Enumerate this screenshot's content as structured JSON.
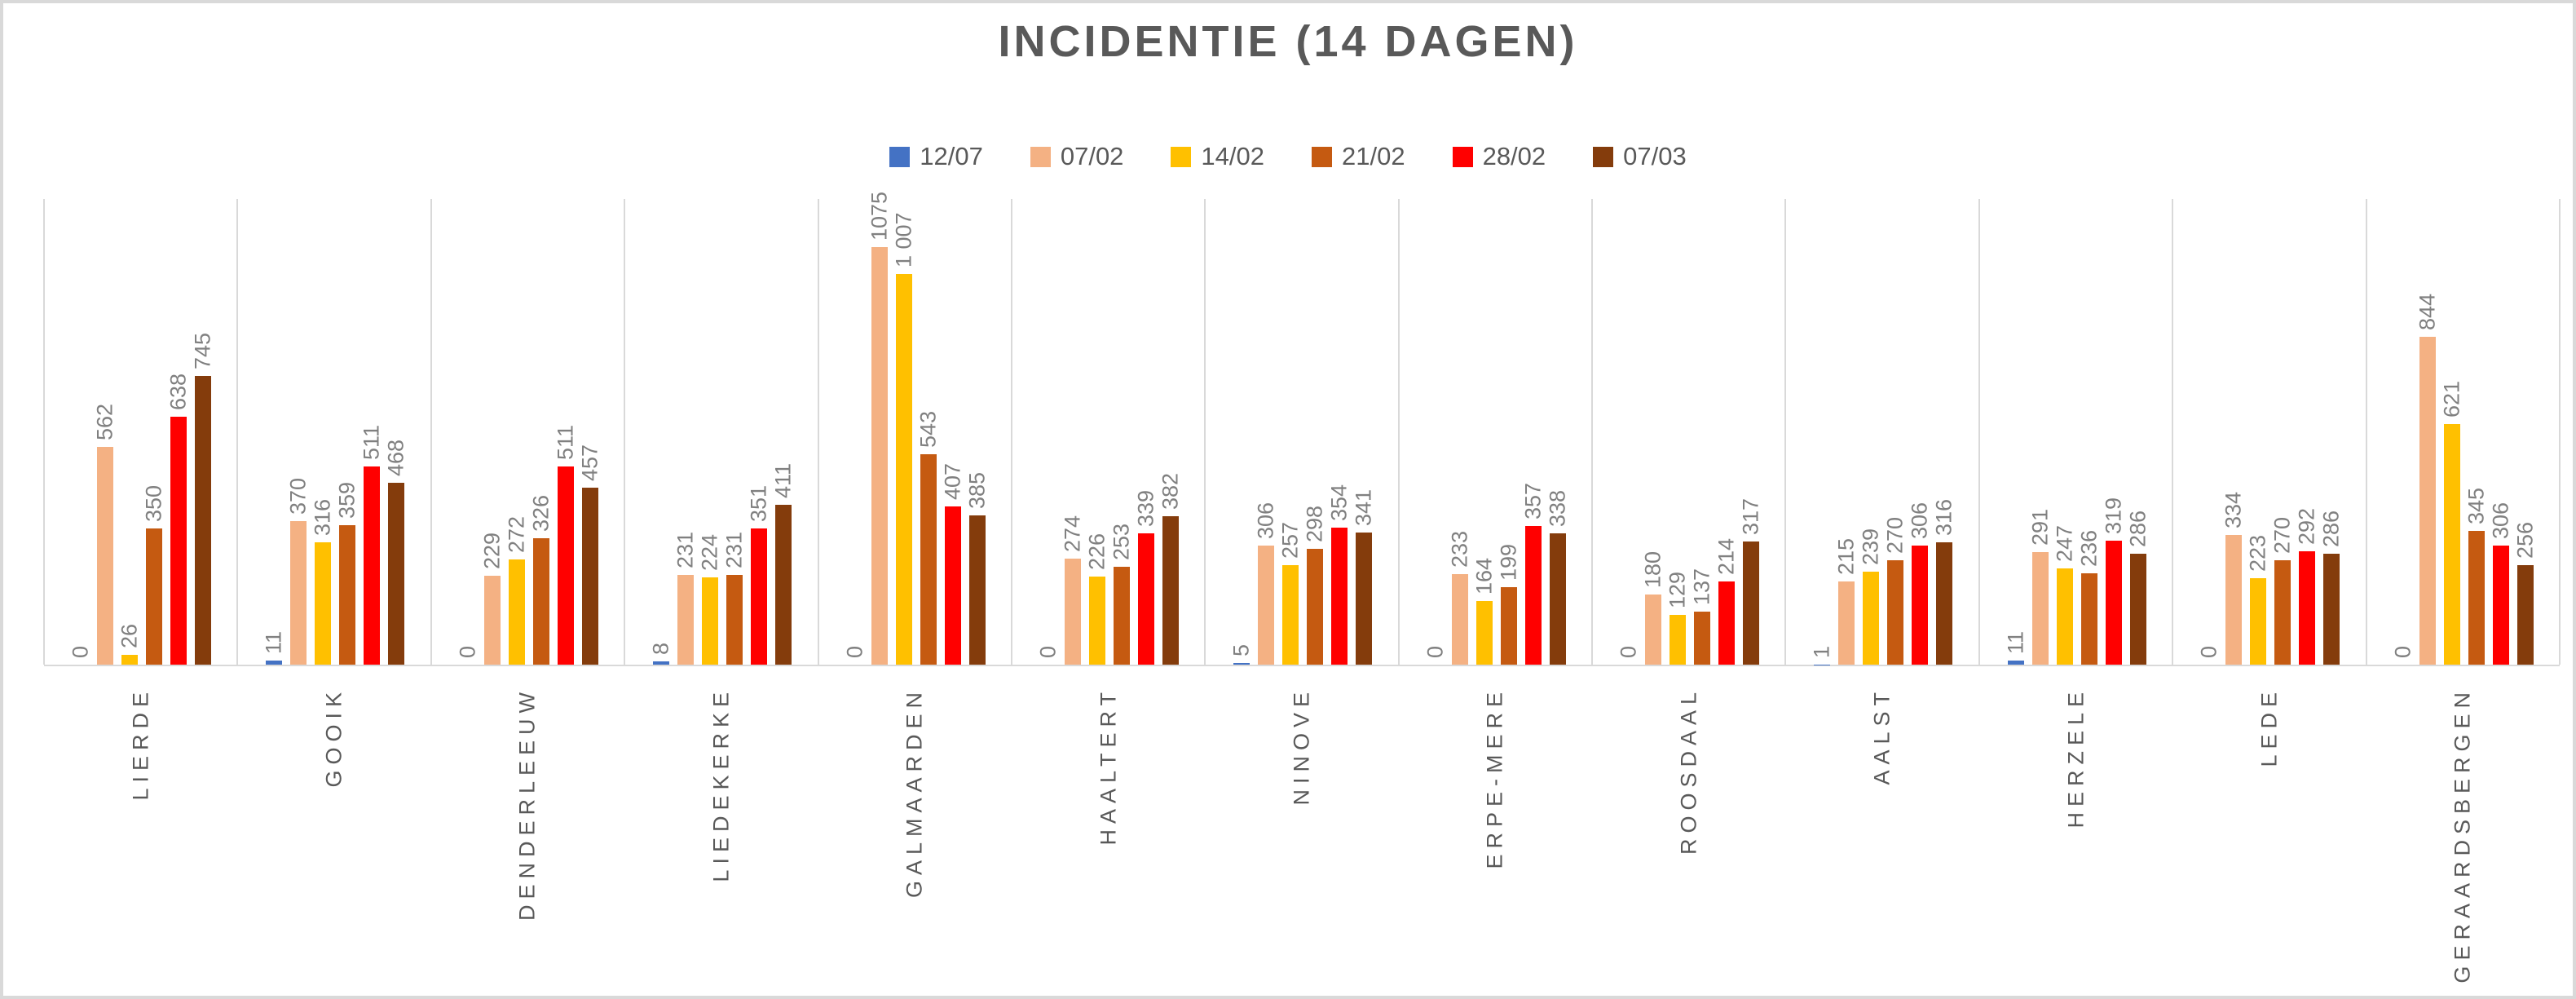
{
  "title": "INCIDENTIE (14 DAGEN)",
  "legend": [
    {
      "label": "12/07",
      "color": "#4472C4"
    },
    {
      "label": "07/02",
      "color": "#F4B183"
    },
    {
      "label": "14/02",
      "color": "#FFC000"
    },
    {
      "label": "21/02",
      "color": "#C55A11"
    },
    {
      "label": "28/02",
      "color": "#FF0000"
    },
    {
      "label": "07/03",
      "color": "#843C0C"
    }
  ],
  "colors": {
    "title_text": "#595959",
    "legend_text": "#595959",
    "data_label_text": "#808080",
    "axis_label_text": "#595959",
    "gridline": "#D9D9D9",
    "background": "#FFFFFF"
  },
  "chart_data": {
    "type": "bar",
    "title": "INCIDENTIE (14 DAGEN)",
    "xlabel": "",
    "ylabel": "",
    "ylim": [
      0,
      1200
    ],
    "grid": "vertical-category-separators-only",
    "legend_position": "top-center",
    "bar_label_rotation": -90,
    "category_label_rotation": -90,
    "categories": [
      "LIERDE",
      "GOOIK",
      "DENDERLEEUW",
      "LIEDEKERKE",
      "GALMAARDEN",
      "HAALTERT",
      "NINOVE",
      "ERPE-MERE",
      "ROOSDAAL",
      "AALST",
      "HERZELE",
      "LEDE",
      "GERAARDSBERGEN"
    ],
    "series": [
      {
        "name": "12/07",
        "color": "#4472C4",
        "values": [
          0,
          11,
          0,
          8,
          0,
          0,
          5,
          0,
          0,
          1,
          11,
          0,
          0
        ],
        "labels": [
          "0",
          "11",
          "0",
          "8",
          "0",
          "0",
          "5",
          "0",
          "0",
          "1",
          "11",
          "0",
          "0"
        ]
      },
      {
        "name": "07/02",
        "color": "#F4B183",
        "values": [
          562,
          370,
          229,
          231,
          1075,
          274,
          306,
          233,
          180,
          215,
          291,
          334,
          844
        ],
        "labels": [
          "562",
          "370",
          "229",
          "231",
          "1075",
          "274",
          "306",
          "233",
          "180",
          "215",
          "291",
          "334",
          "844"
        ]
      },
      {
        "name": "14/02",
        "color": "#FFC000",
        "values": [
          26,
          316,
          272,
          224,
          1007,
          226,
          257,
          164,
          129,
          239,
          247,
          223,
          621
        ],
        "labels": [
          "26",
          "316",
          "272",
          "224",
          "1 007",
          "226",
          "257",
          "164",
          "129",
          "239",
          "247",
          "223",
          "621"
        ]
      },
      {
        "name": "21/02",
        "color": "#C55A11",
        "values": [
          350,
          359,
          326,
          231,
          543,
          253,
          298,
          199,
          137,
          270,
          236,
          270,
          345
        ],
        "labels": [
          "350",
          "359",
          "326",
          "231",
          "543",
          "253",
          "298",
          "199",
          "137",
          "270",
          "236",
          "270",
          "345"
        ]
      },
      {
        "name": "28/02",
        "color": "#FF0000",
        "values": [
          638,
          511,
          511,
          351,
          407,
          339,
          354,
          357,
          214,
          306,
          319,
          292,
          306
        ],
        "labels": [
          "638",
          "511",
          "511",
          "351",
          "407",
          "339",
          "354",
          "357",
          "214",
          "306",
          "319",
          "292",
          "306"
        ]
      },
      {
        "name": "07/03",
        "color": "#843C0C",
        "values": [
          745,
          468,
          457,
          411,
          385,
          382,
          341,
          338,
          317,
          316,
          286,
          286,
          256
        ],
        "labels": [
          "745",
          "468",
          "457",
          "411",
          "385",
          "382",
          "341",
          "338",
          "317",
          "316",
          "286",
          "286",
          "256"
        ]
      }
    ]
  }
}
